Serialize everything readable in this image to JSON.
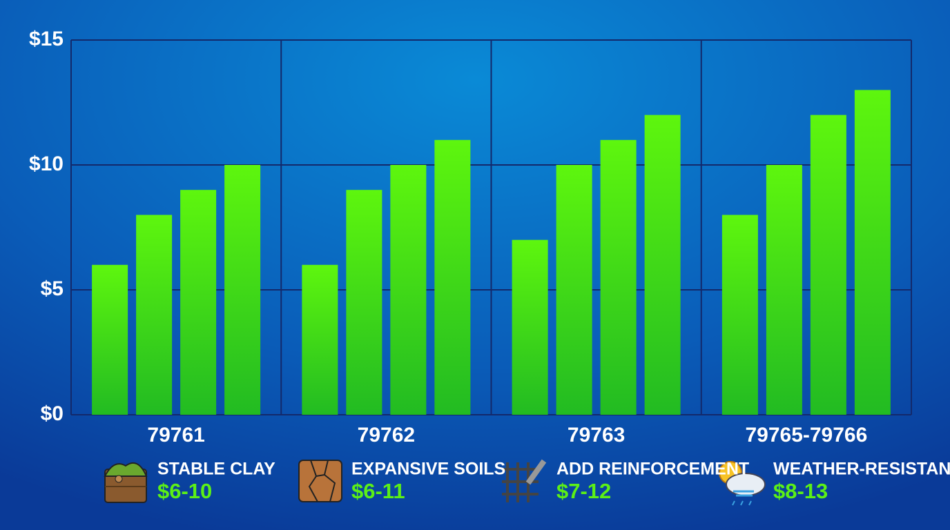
{
  "chart_data": {
    "type": "bar",
    "categories": [
      "79761",
      "79762",
      "79763",
      "79765-79766"
    ],
    "series": [
      {
        "color": "#5ef60e",
        "values": [
          6,
          6,
          7,
          8
        ]
      },
      {
        "color": "#5ef60e",
        "values": [
          8,
          9,
          10,
          10
        ]
      },
      {
        "color": "#5ef60e",
        "values": [
          9,
          10,
          11,
          12
        ]
      },
      {
        "color": "#5ef60e",
        "values": [
          10,
          11,
          12,
          13
        ]
      }
    ],
    "ylim": [
      0,
      15
    ],
    "yticks": [
      {
        "value": 0,
        "label": "$0"
      },
      {
        "value": 5,
        "label": "$5"
      },
      {
        "value": 10,
        "label": "$10"
      },
      {
        "value": 15,
        "label": "$15"
      }
    ],
    "grid": true,
    "annotations": [
      {
        "label": "STABLE CLAY",
        "range": "$6-10"
      },
      {
        "label": "EXPANSIVE SOILS",
        "range": "$6-11"
      },
      {
        "label": "ADD REINFORCEMENT",
        "range": "$7-12"
      },
      {
        "label": "WEATHER-RESISTANT",
        "range": "$8-13"
      }
    ]
  }
}
